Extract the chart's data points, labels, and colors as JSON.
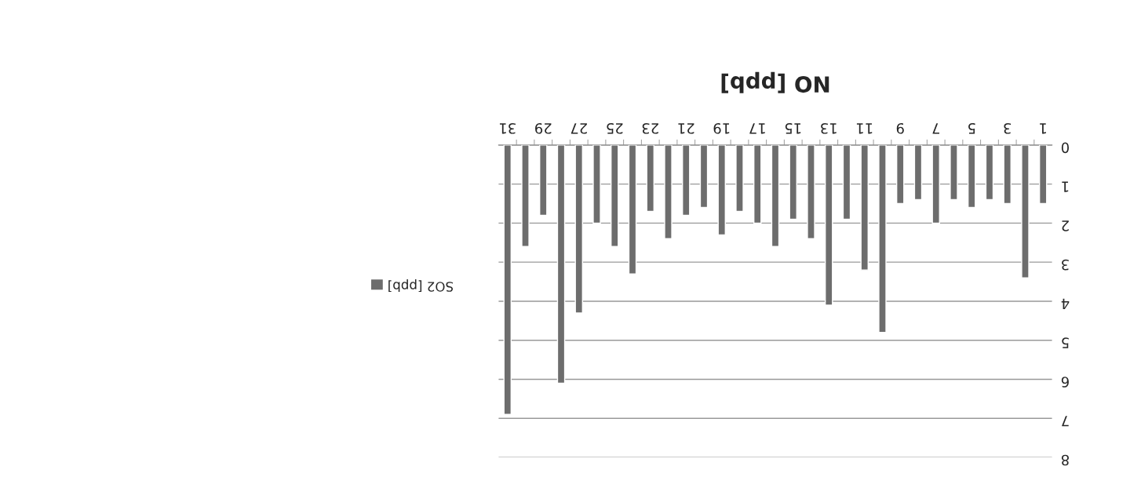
{
  "chart_data": {
    "type": "bar",
    "title": "NO [ppb]",
    "categories": [
      "31",
      null,
      "29",
      null,
      "27",
      null,
      "25",
      null,
      "23",
      null,
      "21",
      null,
      "19",
      null,
      "17",
      null,
      "15",
      null,
      "13",
      null,
      "11",
      null,
      "9",
      null,
      "7",
      null,
      "5",
      null,
      "3",
      null,
      "1"
    ],
    "series": [
      {
        "name": "SO2 [ppb]",
        "color": "#6d6d6d",
        "values": [
          6.9,
          2.6,
          1.8,
          6.1,
          4.3,
          2.0,
          2.6,
          3.3,
          1.7,
          2.4,
          1.8,
          1.6,
          2.3,
          1.7,
          2.0,
          2.6,
          1.9,
          2.4,
          4.1,
          1.9,
          3.2,
          4.8,
          1.5,
          1.4,
          2.0,
          1.4,
          1.6,
          1.4,
          1.5,
          3.4,
          1.5
        ]
      }
    ],
    "ylim": [
      8,
      0
    ],
    "yticks": [
      0,
      1,
      2,
      3,
      4,
      5,
      6,
      7,
      8
    ],
    "grid": "y",
    "legend": "left"
  }
}
